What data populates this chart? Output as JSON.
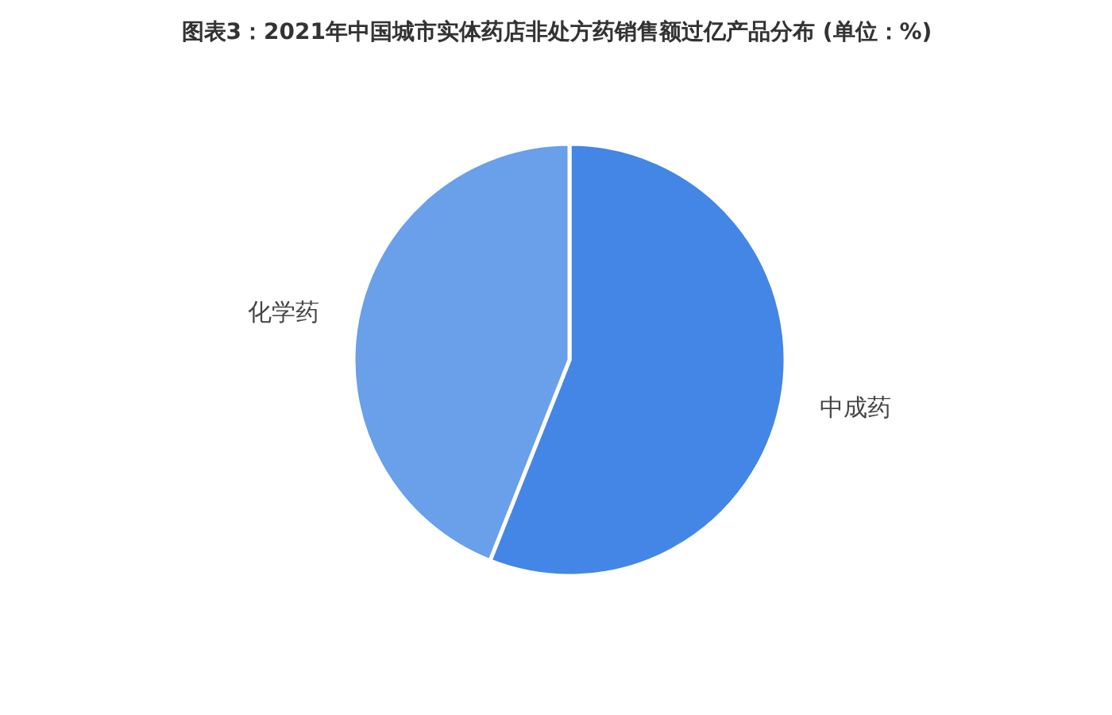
{
  "chart_data": {
    "type": "pie",
    "title": "图表3：2021年中国城市实体药店非处方药销售额过亿产品分布 (单位：%)",
    "categories": [
      "中成药",
      "化学药"
    ],
    "values": [
      56,
      44
    ],
    "colors": [
      "#4386e6",
      "#6a9fe9"
    ]
  }
}
